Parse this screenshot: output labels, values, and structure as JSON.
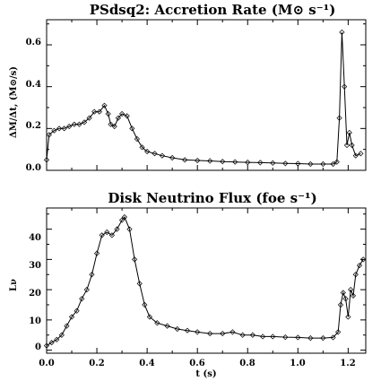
{
  "chart_data": [
    {
      "type": "line",
      "title": "PSdsq2:  Accretion Rate  (M⊙ s⁻¹)",
      "ylabel": "ΔM/Δt, (M⊙/s)",
      "xlabel": "",
      "xlim": [
        0.0,
        1.27
      ],
      "ylim": [
        0.0,
        0.72
      ],
      "x_ticks": [
        "0.0",
        "0.2",
        "0.4",
        "0.6",
        "0.8",
        "1.0",
        "1.2"
      ],
      "y_ticks": [
        "0.0",
        "0.2",
        "0.4",
        "0.6"
      ],
      "marker": "diamond",
      "series": [
        {
          "points": [
            [
              0.0,
              0.05
            ],
            [
              0.01,
              0.17
            ],
            [
              0.03,
              0.19
            ],
            [
              0.05,
              0.2
            ],
            [
              0.07,
              0.2
            ],
            [
              0.09,
              0.21
            ],
            [
              0.11,
              0.22
            ],
            [
              0.13,
              0.22
            ],
            [
              0.15,
              0.23
            ],
            [
              0.17,
              0.25
            ],
            [
              0.19,
              0.28
            ],
            [
              0.21,
              0.28
            ],
            [
              0.23,
              0.31
            ],
            [
              0.245,
              0.27
            ],
            [
              0.255,
              0.22
            ],
            [
              0.27,
              0.21
            ],
            [
              0.285,
              0.25
            ],
            [
              0.3,
              0.27
            ],
            [
              0.32,
              0.26
            ],
            [
              0.34,
              0.2
            ],
            [
              0.36,
              0.15
            ],
            [
              0.38,
              0.11
            ],
            [
              0.4,
              0.09
            ],
            [
              0.43,
              0.08
            ],
            [
              0.46,
              0.07
            ],
            [
              0.5,
              0.06
            ],
            [
              0.55,
              0.05
            ],
            [
              0.6,
              0.047
            ],
            [
              0.65,
              0.045
            ],
            [
              0.7,
              0.042
            ],
            [
              0.75,
              0.04
            ],
            [
              0.8,
              0.038
            ],
            [
              0.85,
              0.037
            ],
            [
              0.9,
              0.035
            ],
            [
              0.95,
              0.033
            ],
            [
              1.0,
              0.032
            ],
            [
              1.05,
              0.03
            ],
            [
              1.1,
              0.03
            ],
            [
              1.14,
              0.03
            ],
            [
              1.155,
              0.04
            ],
            [
              1.165,
              0.25
            ],
            [
              1.175,
              0.66
            ],
            [
              1.185,
              0.4
            ],
            [
              1.195,
              0.12
            ],
            [
              1.205,
              0.18
            ],
            [
              1.215,
              0.12
            ],
            [
              1.23,
              0.07
            ],
            [
              1.25,
              0.08
            ]
          ]
        }
      ]
    },
    {
      "type": "line",
      "title": "Disk Neutrino Flux  (foe  s⁻¹)",
      "ylabel": "Lν",
      "xlabel": "t (s)",
      "xlim": [
        0.0,
        1.27
      ],
      "ylim": [
        -1,
        47
      ],
      "x_ticks": [
        "0.0",
        "0.2",
        "0.4",
        "0.6",
        "0.8",
        "1.0",
        "1.2"
      ],
      "y_ticks": [
        "0",
        "10",
        "20",
        "30",
        "40"
      ],
      "marker": "diamond",
      "series": [
        {
          "points": [
            [
              0.0,
              1.5
            ],
            [
              0.02,
              2.5
            ],
            [
              0.04,
              3.5
            ],
            [
              0.06,
              5
            ],
            [
              0.08,
              8
            ],
            [
              0.1,
              11
            ],
            [
              0.12,
              13
            ],
            [
              0.14,
              17
            ],
            [
              0.16,
              20
            ],
            [
              0.18,
              25
            ],
            [
              0.2,
              32
            ],
            [
              0.22,
              38
            ],
            [
              0.24,
              39
            ],
            [
              0.26,
              38
            ],
            [
              0.28,
              40
            ],
            [
              0.3,
              43
            ],
            [
              0.31,
              44
            ],
            [
              0.33,
              40
            ],
            [
              0.35,
              30
            ],
            [
              0.37,
              22
            ],
            [
              0.39,
              15
            ],
            [
              0.41,
              11
            ],
            [
              0.44,
              9
            ],
            [
              0.48,
              8
            ],
            [
              0.52,
              7
            ],
            [
              0.56,
              6.5
            ],
            [
              0.6,
              6
            ],
            [
              0.65,
              5.5
            ],
            [
              0.7,
              5.5
            ],
            [
              0.74,
              6
            ],
            [
              0.78,
              5
            ],
            [
              0.82,
              5
            ],
            [
              0.86,
              4.5
            ],
            [
              0.9,
              4.5
            ],
            [
              0.95,
              4.3
            ],
            [
              1.0,
              4.2
            ],
            [
              1.05,
              4.0
            ],
            [
              1.1,
              4.0
            ],
            [
              1.14,
              4.2
            ],
            [
              1.16,
              6
            ],
            [
              1.17,
              15
            ],
            [
              1.18,
              19
            ],
            [
              1.19,
              17
            ],
            [
              1.2,
              11
            ],
            [
              1.21,
              20
            ],
            [
              1.22,
              18
            ],
            [
              1.23,
              25
            ],
            [
              1.245,
              28
            ],
            [
              1.26,
              30
            ]
          ]
        }
      ]
    }
  ]
}
